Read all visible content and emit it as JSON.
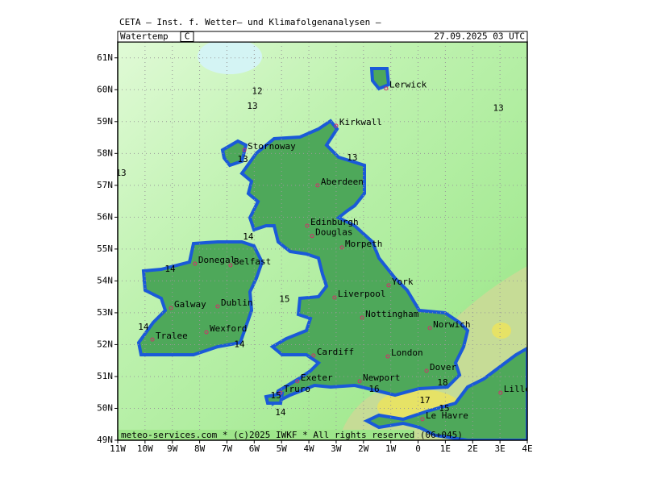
{
  "header": {
    "title": "CETA – Inst. f. Wetter– und Klimafolgenanalysen –",
    "parameter": "Watertemp",
    "unit": "C",
    "valid_time": "27.09.2025 03 UTC"
  },
  "footer": "meteo-services.com * (c)2025 IWKF * All rights reserved (06+045)",
  "axes": {
    "lon_range": [
      -11,
      4
    ],
    "lat_range": [
      49,
      61.5
    ],
    "lon_ticks": [
      {
        "value": -11,
        "label": "11W"
      },
      {
        "value": -10,
        "label": "10W"
      },
      {
        "value": -9,
        "label": "9W"
      },
      {
        "value": -8,
        "label": "8W"
      },
      {
        "value": -7,
        "label": "7W"
      },
      {
        "value": -6,
        "label": "6W"
      },
      {
        "value": -5,
        "label": "5W"
      },
      {
        "value": -4,
        "label": "4W"
      },
      {
        "value": -3,
        "label": "3W"
      },
      {
        "value": -2,
        "label": "2W"
      },
      {
        "value": -1,
        "label": "1W"
      },
      0,
      {
        "value": 1,
        "label": "1E"
      },
      {
        "value": 2,
        "label": "2E"
      },
      {
        "value": 3,
        "label": "3E"
      },
      {
        "value": 4,
        "label": "4E"
      }
    ],
    "lat_ticks": [
      {
        "value": 49,
        "label": "49N"
      },
      {
        "value": 50,
        "label": "50N"
      },
      {
        "value": 51,
        "label": "51N"
      },
      {
        "value": 52,
        "label": "52N"
      },
      {
        "value": 53,
        "label": "53N"
      },
      {
        "value": 54,
        "label": "54N"
      },
      {
        "value": 55,
        "label": "55N"
      },
      {
        "value": 56,
        "label": "56N"
      },
      {
        "value": 57,
        "label": "57N"
      },
      {
        "value": 58,
        "label": "58N"
      },
      {
        "value": 59,
        "label": "59N"
      },
      {
        "value": 60,
        "label": "60N"
      },
      {
        "value": 61,
        "label": "61N"
      }
    ]
  },
  "cities": [
    {
      "name": "Lerwick",
      "lon": -1.17,
      "lat": 60.04
    },
    {
      "name": "Kirkwall",
      "lon": -3.0,
      "lat": 58.87
    },
    {
      "name": "Stornoway",
      "lon": -6.36,
      "lat": 58.11
    },
    {
      "name": "Aberdeen",
      "lon": -3.68,
      "lat": 57.0
    },
    {
      "name": "Edinburgh",
      "lon": -4.06,
      "lat": 55.73
    },
    {
      "name": "Douglas",
      "lon": -3.88,
      "lat": 55.41
    },
    {
      "name": "Morpeth",
      "lon": -2.79,
      "lat": 55.05
    },
    {
      "name": "Donegal",
      "lon": -8.17,
      "lat": 54.54
    },
    {
      "name": "Belfast",
      "lon": -6.87,
      "lat": 54.49
    },
    {
      "name": "York",
      "lon": -1.08,
      "lat": 53.86
    },
    {
      "name": "Galway",
      "lon": -9.05,
      "lat": 53.15
    },
    {
      "name": "Dublin",
      "lon": -7.34,
      "lat": 53.2
    },
    {
      "name": "Liverpool",
      "lon": -3.06,
      "lat": 53.48
    },
    {
      "name": "Nottingham",
      "lon": -2.05,
      "lat": 52.85
    },
    {
      "name": "Norwich",
      "lon": 0.43,
      "lat": 52.52
    },
    {
      "name": "Wexford",
      "lon": -7.75,
      "lat": 52.39
    },
    {
      "name": "Tralee",
      "lon": -9.73,
      "lat": 52.16
    },
    {
      "name": "Cardiff",
      "lon": -3.83,
      "lat": 51.66
    },
    {
      "name": "London",
      "lon": -1.11,
      "lat": 51.63
    },
    {
      "name": "Dover",
      "lon": 0.31,
      "lat": 51.18
    },
    {
      "name": "Newport",
      "lon": -2.14,
      "lat": 50.85
    },
    {
      "name": "Exeter",
      "lon": -4.42,
      "lat": 50.85
    },
    {
      "name": "Truro",
      "lon": -5.04,
      "lat": 50.49
    },
    {
      "name": "Lille",
      "lon": 3.02,
      "lat": 50.49
    },
    {
      "name": "Le Havre",
      "lon": 0.16,
      "lat": 49.66
    }
  ],
  "contour_labels": [
    {
      "value": 12,
      "lon": -5.89,
      "lat": 59.94
    },
    {
      "value": 13,
      "lon": -6.07,
      "lat": 59.48
    },
    {
      "value": 13,
      "lon": 2.94,
      "lat": 59.41
    },
    {
      "value": 13,
      "lon": -2.41,
      "lat": 57.86
    },
    {
      "value": 13,
      "lon": -10.88,
      "lat": 57.38
    },
    {
      "value": 13,
      "lon": -6.42,
      "lat": 57.81
    },
    {
      "value": 14,
      "lon": -6.22,
      "lat": 55.38
    },
    {
      "value": 14,
      "lon": -9.08,
      "lat": 54.37
    },
    {
      "value": 15,
      "lon": -4.89,
      "lat": 53.41
    },
    {
      "value": 14,
      "lon": -10.06,
      "lat": 52.54
    },
    {
      "value": 14,
      "lon": -6.54,
      "lat": 52.0
    },
    {
      "value": 16,
      "lon": -1.61,
      "lat": 50.59
    },
    {
      "value": 17,
      "lon": 0.25,
      "lat": 50.24
    },
    {
      "value": 18,
      "lon": 0.9,
      "lat": 50.8
    },
    {
      "value": 15,
      "lon": 0.96,
      "lat": 49.99
    },
    {
      "value": 15,
      "lon": -5.21,
      "lat": 50.39
    },
    {
      "value": 14,
      "lon": -5.04,
      "lat": 49.86
    }
  ]
}
